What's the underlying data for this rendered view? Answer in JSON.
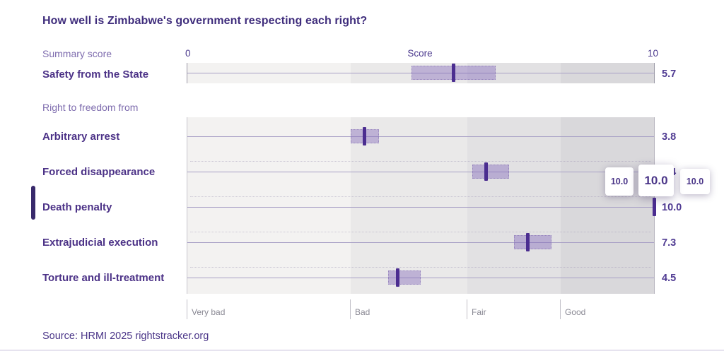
{
  "header": {
    "title": "How well is Zimbabwe's government respecting each right?",
    "axis_min": "0",
    "axis_label": "Score",
    "axis_max": "10"
  },
  "summary": {
    "section_label": "Summary score",
    "row": {
      "label": "Safety from the State",
      "value": "5.7",
      "score": 5.7,
      "ci_low": 4.8,
      "ci_high": 6.6
    }
  },
  "group": {
    "section_label": "Right to freedom from",
    "rows": [
      {
        "label": "Arbitrary arrest",
        "value": "3.8",
        "score": 3.8,
        "ci_low": 3.5,
        "ci_high": 4.1
      },
      {
        "label": "Forced disappearance",
        "value": "6.4",
        "score": 6.4,
        "ci_low": 6.1,
        "ci_high": 6.9
      },
      {
        "label": "Death penalty",
        "value": "10.0",
        "score": 10.0,
        "ci_low": 10.0,
        "ci_high": 10.0,
        "highlighted": true
      },
      {
        "label": "Extrajudicial execution",
        "value": "7.3",
        "score": 7.3,
        "ci_low": 7.0,
        "ci_high": 7.8
      },
      {
        "label": "Torture and ill-treatment",
        "value": "4.5",
        "score": 4.5,
        "ci_low": 4.3,
        "ci_high": 5.0
      }
    ]
  },
  "tooltip": {
    "low": "10.0",
    "value": "10.0",
    "high": "10.0"
  },
  "source": "Source: HRMI 2025 rightstracker.org",
  "colors": {
    "title_text": "#3f2d7c",
    "bold_label": "#4c3287",
    "muted_label": "#7e6cae",
    "value_text": "#4f3a92",
    "marker": "#4b2d90",
    "uncertainty_band": "#8067ba",
    "gridline": "#a79fc5",
    "band_colors": [
      "#f3f2f1",
      "#eae9e9",
      "#e2e1e3",
      "#d9d8db"
    ],
    "band_label_text": "#8a8994",
    "active_indicator": "#38296b"
  },
  "chart_data": {
    "type": "scatter",
    "title": "How well is Zimbabwe's government respecting each right?",
    "xlabel": "Score",
    "xlim": [
      0,
      10
    ],
    "grid": "horizontal per-row axis lines",
    "quality_bands": [
      {
        "label": "Very bad",
        "range": [
          0,
          3.5
        ]
      },
      {
        "label": "Bad",
        "range": [
          3.5,
          6
        ]
      },
      {
        "label": "Fair",
        "range": [
          6,
          8
        ]
      },
      {
        "label": "Good",
        "range": [
          8,
          10
        ]
      }
    ],
    "categories": [
      "Safety from the State",
      "Arbitrary arrest",
      "Forced disappearance",
      "Death penalty",
      "Extrajudicial execution",
      "Torture and ill-treatment"
    ],
    "values": [
      5.7,
      3.8,
      6.4,
      10.0,
      7.3,
      4.5
    ],
    "ci_low": [
      4.8,
      3.5,
      6.1,
      10.0,
      7.0,
      4.3
    ],
    "ci_high": [
      6.6,
      4.1,
      6.9,
      10.0,
      7.8,
      5.0
    ],
    "highlighted_category": "Death penalty",
    "tooltip_values": {
      "low": "10.0",
      "score": "10.0",
      "high": "10.0"
    },
    "source": "Source: HRMI 2025 rightstracker.org"
  }
}
